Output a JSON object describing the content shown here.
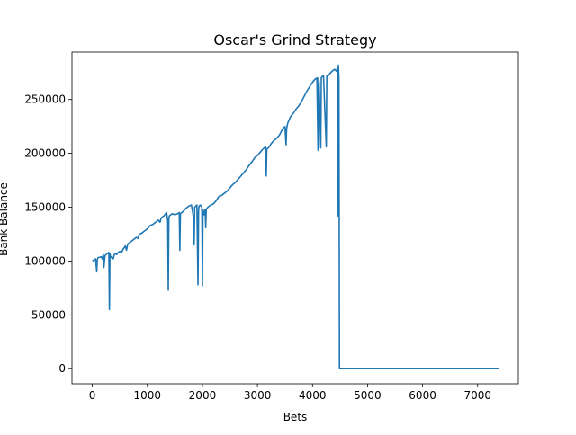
{
  "chart_data": {
    "type": "line",
    "title": "Oscar's Grind Strategy",
    "xlabel": "Bets",
    "ylabel": "Bank Balance",
    "xlim": [
      -370,
      7740
    ],
    "ylim": [
      -14000,
      294000
    ],
    "xticks": [
      0,
      1000,
      2000,
      3000,
      4000,
      5000,
      6000,
      7000
    ],
    "yticks": [
      0,
      50000,
      100000,
      150000,
      200000,
      250000
    ],
    "grid": false,
    "line_color": "#1f77b4",
    "x": [
      0,
      60,
      80,
      90,
      100,
      160,
      180,
      200,
      210,
      230,
      250,
      300,
      310,
      320,
      330,
      350,
      380,
      400,
      420,
      440,
      470,
      500,
      530,
      560,
      600,
      620,
      640,
      650,
      700,
      750,
      800,
      830,
      850,
      860,
      900,
      950,
      1000,
      1050,
      1100,
      1150,
      1200,
      1230,
      1250,
      1300,
      1350,
      1370,
      1380,
      1390,
      1400,
      1450,
      1500,
      1550,
      1580,
      1590,
      1600,
      1650,
      1700,
      1750,
      1800,
      1840,
      1850,
      1860,
      1900,
      1920,
      1930,
      1940,
      1960,
      1990,
      2000,
      2010,
      2030,
      2050,
      2060,
      2070,
      2100,
      2150,
      2200,
      2250,
      2300,
      2350,
      2400,
      2450,
      2500,
      2550,
      2600,
      2650,
      2700,
      2750,
      2800,
      2850,
      2900,
      2950,
      3000,
      3050,
      3100,
      3150,
      3160,
      3170,
      3200,
      3250,
      3300,
      3350,
      3400,
      3450,
      3500,
      3520,
      3530,
      3550,
      3600,
      3650,
      3700,
      3750,
      3800,
      3850,
      3900,
      3950,
      4000,
      4050,
      4080,
      4100,
      4110,
      4120,
      4150,
      4160,
      4170,
      4200,
      4250,
      4260,
      4270,
      4300,
      4350,
      4400,
      4440,
      4450,
      4460,
      4470,
      4480,
      4485,
      4490,
      4500,
      5000,
      6000,
      7000,
      7380
    ],
    "y": [
      100000,
      102000,
      90000,
      101000,
      103000,
      104000,
      102000,
      106000,
      94000,
      105000,
      106000,
      108000,
      55000,
      107000,
      103000,
      104000,
      102000,
      106000,
      107000,
      106000,
      108000,
      109000,
      108000,
      111000,
      114000,
      110000,
      115000,
      116000,
      118000,
      120000,
      122000,
      121000,
      124000,
      125000,
      126000,
      128000,
      130000,
      133000,
      134000,
      136000,
      138000,
      136000,
      140000,
      142000,
      145000,
      137000,
      73000,
      140000,
      142000,
      144000,
      143000,
      144000,
      145000,
      110000,
      144000,
      146000,
      149000,
      151000,
      152000,
      140000,
      115000,
      150000,
      152000,
      78000,
      148000,
      151000,
      152000,
      150000,
      77000,
      148000,
      143000,
      148000,
      131000,
      148000,
      150000,
      152000,
      153000,
      156000,
      160000,
      161000,
      163000,
      165000,
      168000,
      171000,
      173000,
      176000,
      179000,
      182000,
      185000,
      189000,
      192000,
      196000,
      198000,
      201000,
      204000,
      206000,
      179000,
      204000,
      205000,
      209000,
      212000,
      214000,
      217000,
      222000,
      225000,
      208000,
      223000,
      228000,
      234000,
      237000,
      241000,
      244000,
      248000,
      253000,
      258000,
      262000,
      266000,
      269000,
      270000,
      203000,
      270000,
      265000,
      205000,
      270000,
      271000,
      272000,
      206000,
      272000,
      271000,
      273000,
      276000,
      278000,
      276000,
      280000,
      142000,
      282000,
      270000,
      140000,
      0,
      0,
      0,
      0,
      0,
      0
    ]
  }
}
